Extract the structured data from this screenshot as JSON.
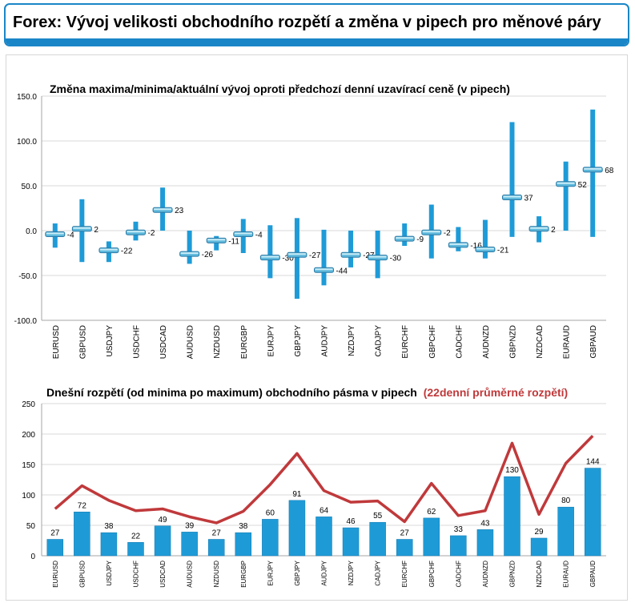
{
  "page": {
    "title": "Forex: Vývoj velikosti obchodního rozpětí a změna v pipech pro měnové páry"
  },
  "chart_data": [
    {
      "type": "range",
      "title": "Změna maxima/minima/aktuální vývoj oproti předchozí denní uzavírací ceně (v pipech)",
      "categories": [
        "EURUSD",
        "GBPUSD",
        "USDJPY",
        "USDCHF",
        "USDCAD",
        "AUDUSD",
        "NZDUSD",
        "EURGBP",
        "EURJPY",
        "GBPJPY",
        "AUDJPY",
        "NZDJPY",
        "CADJPY",
        "EURCHF",
        "GBPCHF",
        "CADCHF",
        "AUDNZD",
        "GBPNZD",
        "NZDCAD",
        "EURAUD",
        "GBPAUD"
      ],
      "high": [
        8,
        35,
        -12,
        10,
        48,
        0,
        -6,
        13,
        6,
        14,
        1,
        0,
        0,
        8,
        29,
        4,
        12,
        121,
        16,
        77,
        135
      ],
      "low": [
        -19,
        -35,
        -35,
        -11,
        0,
        -37,
        -22,
        -25,
        -53,
        -76,
        -61,
        -41,
        -53,
        -17,
        -31,
        -23,
        -31,
        -7,
        -13,
        0,
        -7
      ],
      "current": [
        -4,
        2,
        -22,
        -2,
        23,
        -26,
        -11,
        -4,
        -30,
        -27,
        -44,
        -27,
        -30,
        -9,
        -2,
        -16,
        -21,
        37,
        2,
        52,
        68
      ],
      "ylim": [
        -100,
        150
      ],
      "yticks": [
        "150.0",
        "100.0",
        "50.0",
        "0.0",
        "-50.0",
        "-100.0"
      ],
      "color": "#1e9bd7"
    },
    {
      "type": "bar+line",
      "title": "Dnešní rozpětí (od minima po maximum) obchodního pásma v pipech",
      "title_highlight": "(22denní průměrné rozpětí)",
      "categories": [
        "EURUSD",
        "GBPUSD",
        "USDJPY",
        "USDCHF",
        "USDCAD",
        "AUDUSD",
        "NZDUSD",
        "EURGBP",
        "EURJPY",
        "GBPJPY",
        "AUDJPY",
        "NZDJPY",
        "CADJPY",
        "EURCHF",
        "GBPCHF",
        "CADCHF",
        "AUDNZD",
        "GBPNZD",
        "NZDCAD",
        "EURAUD",
        "GBPAUD"
      ],
      "bars": [
        27,
        72,
        38,
        22,
        49,
        39,
        27,
        38,
        60,
        91,
        64,
        46,
        55,
        27,
        62,
        33,
        43,
        130,
        29,
        80,
        144
      ],
      "line": [
        77,
        115,
        91,
        74,
        77,
        64,
        54,
        73,
        117,
        168,
        107,
        88,
        90,
        56,
        119,
        66,
        74,
        185,
        68,
        152,
        197
      ],
      "ylim": [
        0,
        250
      ],
      "yticks": [
        "250",
        "200",
        "150",
        "100",
        "50",
        "0"
      ],
      "bar_color": "#1e9bd7",
      "line_color": "#c0393b"
    }
  ]
}
